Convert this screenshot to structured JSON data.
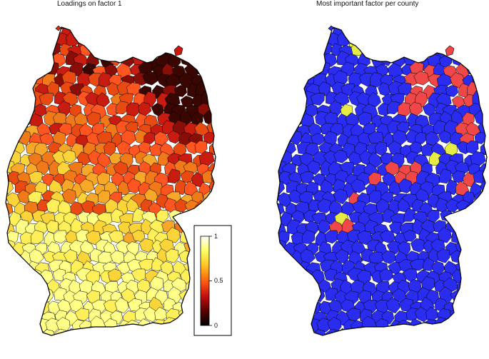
{
  "panels": {
    "left": {
      "title": "Loadings on factor 1",
      "colorbar": {
        "ticks": [
          {
            "label": "1",
            "value": 1.0
          },
          {
            "label": "0.5",
            "value": 0.5
          },
          {
            "label": "0",
            "value": 0.0
          }
        ],
        "gradient_stops": [
          "#000000",
          "#5a0000",
          "#c81010",
          "#ff6010",
          "#ffc020",
          "#ffff60",
          "#ffffff"
        ]
      },
      "palette_sample": [
        "#c81c10",
        "#e84a12",
        "#f07a1a",
        "#f7a828",
        "#fbd43a",
        "#fff05a",
        "#ffff88",
        "#8a0e08",
        "#3a0602",
        "#ff5520"
      ]
    },
    "right": {
      "title": "Most important factor per county",
      "factor_colors": {
        "dominant": "#2a2df0",
        "secondary": "#f04848",
        "tertiary": "#e6ec46"
      }
    }
  }
}
